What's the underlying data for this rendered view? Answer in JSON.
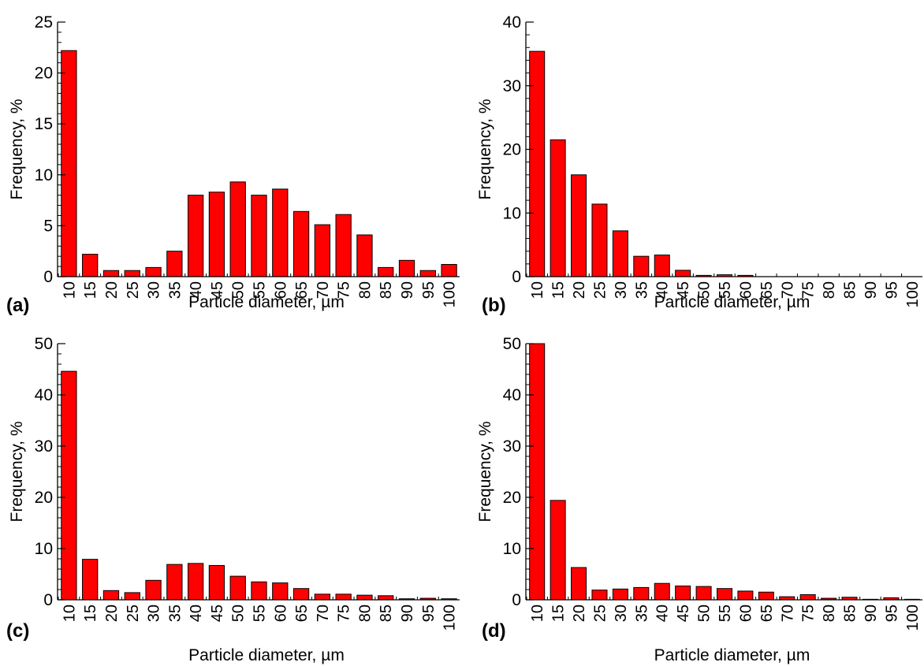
{
  "colors": {
    "bar_fill": "#ff0000",
    "bar_stroke": "#000000",
    "axis": "#000000",
    "text": "#000000"
  },
  "chart_data": [
    {
      "type": "bar",
      "panel_label": "(a)",
      "xlabel": "Particle diameter, µm",
      "ylabel": "Frequency, %",
      "ylim": [
        0,
        25
      ],
      "yticks": [
        "0",
        "5",
        "10",
        "15",
        "20",
        "25"
      ],
      "categories": [
        "10",
        "15",
        "20",
        "25",
        "30",
        "35",
        "40",
        "45",
        "50",
        "55",
        "60",
        "65",
        "70",
        "75",
        "80",
        "85",
        "90",
        "95",
        "100"
      ],
      "values": [
        22.2,
        2.2,
        0.6,
        0.6,
        0.9,
        2.5,
        8.0,
        8.3,
        9.3,
        8.0,
        8.6,
        6.4,
        5.1,
        6.1,
        4.1,
        0.9,
        1.6,
        0.6,
        1.2
      ],
      "grid": false
    },
    {
      "type": "bar",
      "panel_label": "(b)",
      "xlabel": "Particle diameter, µm",
      "ylabel": "Frequency, %",
      "ylim": [
        0,
        40
      ],
      "yticks": [
        "0",
        "10",
        "20",
        "30",
        "40"
      ],
      "categories": [
        "10",
        "15",
        "20",
        "25",
        "30",
        "35",
        "40",
        "45",
        "50",
        "55",
        "60",
        "65",
        "70",
        "75",
        "80",
        "85",
        "90",
        "95",
        "100"
      ],
      "values": [
        35.4,
        21.5,
        16.0,
        11.4,
        7.2,
        3.2,
        3.4,
        1.0,
        0.2,
        0.3,
        0.2,
        0,
        0,
        0,
        0,
        0,
        0,
        0,
        0
      ],
      "grid": false
    },
    {
      "type": "bar",
      "panel_label": "(c)",
      "xlabel": "Particle diameter, µm",
      "ylabel": "Frequency, %",
      "ylim": [
        0,
        50
      ],
      "yticks": [
        "0",
        "10",
        "20",
        "30",
        "40",
        "50"
      ],
      "categories": [
        "10",
        "15",
        "20",
        "25",
        "30",
        "35",
        "40",
        "45",
        "50",
        "55",
        "60",
        "65",
        "70",
        "75",
        "80",
        "85",
        "90",
        "95",
        "100"
      ],
      "values": [
        44.6,
        7.9,
        1.8,
        1.4,
        3.8,
        6.9,
        7.1,
        6.7,
        4.6,
        3.5,
        3.3,
        2.2,
        1.1,
        1.1,
        0.9,
        0.8,
        0.2,
        0.3,
        0.2
      ],
      "grid": false
    },
    {
      "type": "bar",
      "panel_label": "(d)",
      "xlabel": "Particle diameter, µm",
      "ylabel": "Frequency, %",
      "ylim": [
        0,
        50
      ],
      "yticks": [
        "0",
        "10",
        "20",
        "30",
        "40",
        "50"
      ],
      "categories": [
        "10",
        "15",
        "20",
        "25",
        "30",
        "35",
        "40",
        "45",
        "50",
        "55",
        "60",
        "65",
        "70",
        "75",
        "80",
        "85",
        "90",
        "95",
        "100"
      ],
      "values": [
        50.0,
        19.4,
        6.3,
        1.9,
        2.1,
        2.4,
        3.2,
        2.7,
        2.6,
        2.2,
        1.7,
        1.5,
        0.6,
        1.0,
        0.3,
        0.5,
        0.1,
        0.4,
        0.1
      ],
      "grid": false
    }
  ]
}
